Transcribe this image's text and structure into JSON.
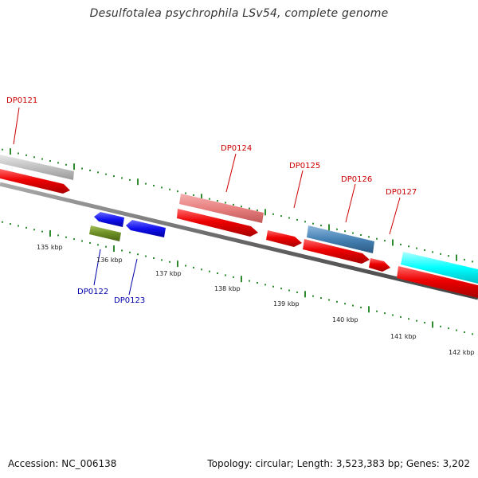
{
  "title": "Desulfotalea psychrophila LSv54, complete genome",
  "footer": {
    "accession": "Accession: NC_006138",
    "topology": "Topology: circular; Length: 3,523,383 bp; Genes: 3,202"
  },
  "colors": {
    "backbone": "#666666",
    "tick": "#2e8b2e",
    "forward_label": "#cc0000",
    "reverse_label": "#0000aa",
    "cds_red": "#ee0000",
    "light_red": "#e88080",
    "gray": "#c0c0c0",
    "blue": "#1010ee",
    "olive": "#6b8e23",
    "steel": "#4682b4",
    "cyan": "#00ffff"
  },
  "ruler": {
    "labels": [
      "135 kbp",
      "136 kbp",
      "137 kbp",
      "138 kbp",
      "139 kbp",
      "140 kbp",
      "141 kbp",
      "142 kbp"
    ]
  },
  "genes": [
    {
      "name": "DP0121",
      "strand": "+",
      "color": "gray"
    },
    {
      "name": "DP0122",
      "strand": "-",
      "color": "olive"
    },
    {
      "name": "DP0123",
      "strand": "-",
      "color": "blue"
    },
    {
      "name": "DP0124",
      "strand": "+",
      "color": "light_red"
    },
    {
      "name": "DP0125",
      "strand": "+",
      "color": "cds_red"
    },
    {
      "name": "DP0126",
      "strand": "+",
      "color": "steel"
    },
    {
      "name": "DP0127",
      "strand": "+",
      "color": "cyan"
    }
  ]
}
